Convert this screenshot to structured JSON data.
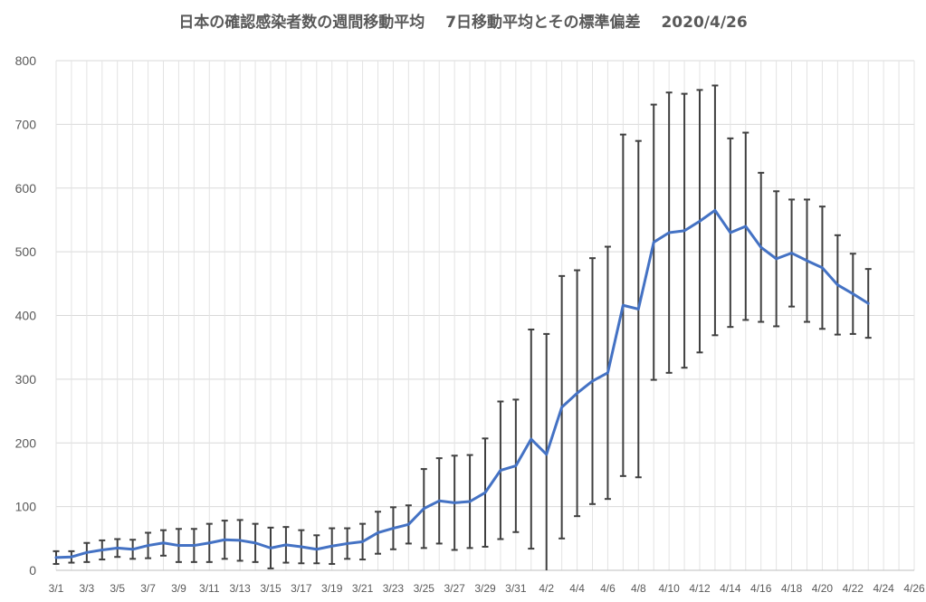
{
  "chart_data": {
    "type": "line",
    "title": "日本の確認感染者数の週間移動平均　 7日移動平均とその標準偏差　 2020/4/26",
    "xlabel": "",
    "ylabel": "",
    "ylim": [
      0,
      800
    ],
    "yticks": [
      0,
      100,
      200,
      300,
      400,
      500,
      600,
      700,
      800
    ],
    "x_tick_labels": [
      "3/1",
      "3/3",
      "3/5",
      "3/7",
      "3/9",
      "3/11",
      "3/13",
      "3/15",
      "3/17",
      "3/19",
      "3/21",
      "3/23",
      "3/25",
      "3/27",
      "3/29",
      "3/31",
      "4/2",
      "4/4",
      "4/6",
      "4/8",
      "4/10",
      "4/12",
      "4/14",
      "4/16",
      "4/18",
      "4/20",
      "4/22",
      "4/24",
      "4/26"
    ],
    "grid": true,
    "series": [
      {
        "color": "#4472C4",
        "x": [
          "3/1",
          "3/2",
          "3/3",
          "3/4",
          "3/5",
          "3/6",
          "3/7",
          "3/8",
          "3/9",
          "3/10",
          "3/11",
          "3/12",
          "3/13",
          "3/14",
          "3/15",
          "3/16",
          "3/17",
          "3/18",
          "3/19",
          "3/20",
          "3/21",
          "3/22",
          "3/23",
          "3/24",
          "3/25",
          "3/26",
          "3/27",
          "3/28",
          "3/29",
          "3/30",
          "3/31",
          "4/1",
          "4/2",
          "4/3",
          "4/4",
          "4/5",
          "4/6",
          "4/7",
          "4/8",
          "4/9",
          "4/10",
          "4/11",
          "4/12",
          "4/13",
          "4/14",
          "4/15",
          "4/16",
          "4/17",
          "4/18",
          "4/19",
          "4/20",
          "4/21",
          "4/22",
          "4/23"
        ],
        "values": [
          20,
          21,
          28,
          32,
          35,
          33,
          39,
          43,
          39,
          39,
          43,
          48,
          47,
          43,
          35,
          40,
          37,
          33,
          38,
          42,
          45,
          59,
          66,
          72,
          97,
          109,
          106,
          108,
          122,
          157,
          164,
          206,
          182,
          256,
          278,
          297,
          310,
          416,
          410,
          515,
          530,
          533,
          548,
          565,
          530,
          540,
          507,
          489,
          498,
          486,
          475,
          448,
          434,
          419
        ],
        "error": [
          10,
          9,
          15,
          15,
          14,
          15,
          20,
          20,
          26,
          26,
          30,
          30,
          32,
          30,
          32,
          28,
          26,
          22,
          28,
          24,
          28,
          33,
          33,
          30,
          62,
          67,
          74,
          73,
          85,
          108,
          104,
          172,
          189,
          206,
          193,
          193,
          198,
          268,
          264,
          216,
          220,
          215,
          206,
          196,
          148,
          147,
          117,
          106,
          84,
          96,
          96,
          78,
          63,
          54
        ]
      }
    ]
  }
}
